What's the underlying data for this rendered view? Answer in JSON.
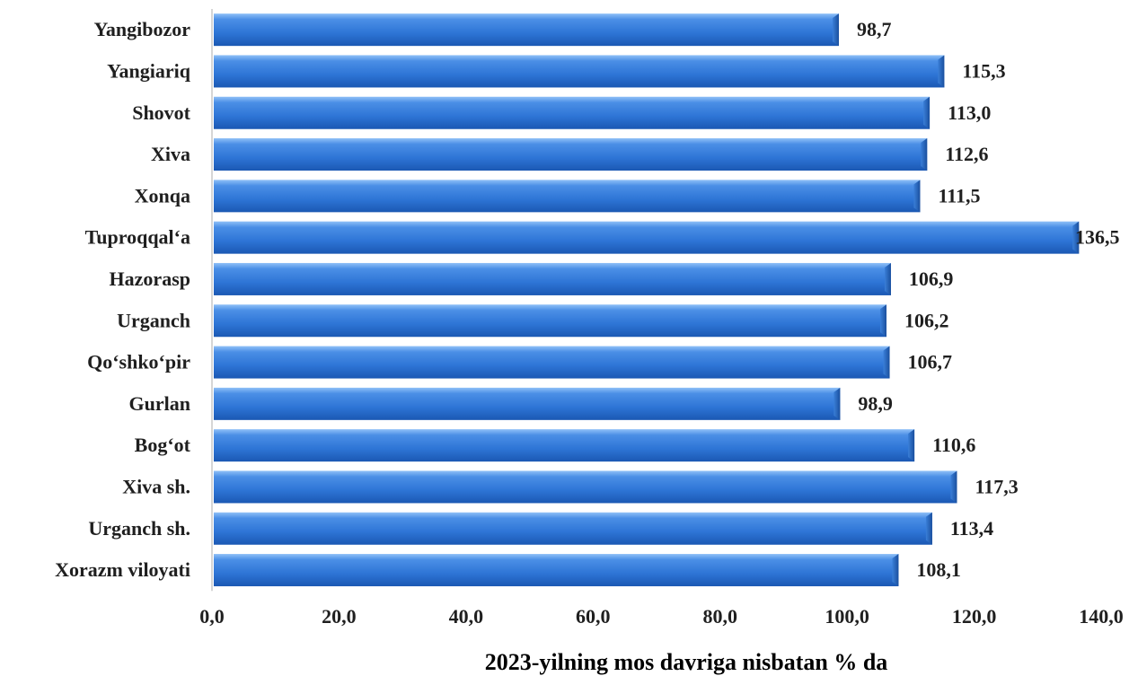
{
  "chart_data": {
    "type": "bar",
    "orientation": "horizontal",
    "categories": [
      "Yangibozor",
      "Yangiariq",
      "Shovot",
      "Xiva",
      "Xonqa",
      "Tuproqqal‘a",
      "Hazorasp",
      "Urganch",
      "Qo‘shko‘pir",
      "Gurlan",
      "Bog‘ot",
      "Xiva sh.",
      "Urganch sh.",
      "Xorazm viloyati"
    ],
    "values": [
      98.7,
      115.3,
      113.0,
      112.6,
      111.5,
      136.5,
      106.9,
      106.2,
      106.7,
      98.9,
      110.6,
      117.3,
      113.4,
      108.1
    ],
    "value_labels": [
      "98,7",
      "115,3",
      "113,0",
      "112,6",
      "111,5",
      "136,5",
      "106,9",
      "106,2",
      "106,7",
      "98,9",
      "110,6",
      "117,3",
      "113,4",
      "108,1"
    ],
    "xticks": [
      0,
      20,
      40,
      60,
      80,
      100,
      120,
      140
    ],
    "xtick_labels": [
      "0,0",
      "20,0",
      "40,0",
      "60,0",
      "80,0",
      "100,0",
      "120,0",
      "140,0"
    ],
    "xlim": [
      0,
      140
    ],
    "xlabel": "2023-yilning mos davriga nisbatan % da",
    "ylabel": "",
    "title": "",
    "grid": false,
    "legend": "none",
    "colors": {
      "bar": "#2e75d6",
      "bar_light": "#6aa6ee",
      "bar_dark": "#1a56b0",
      "axis": "#c8c8c8"
    }
  }
}
